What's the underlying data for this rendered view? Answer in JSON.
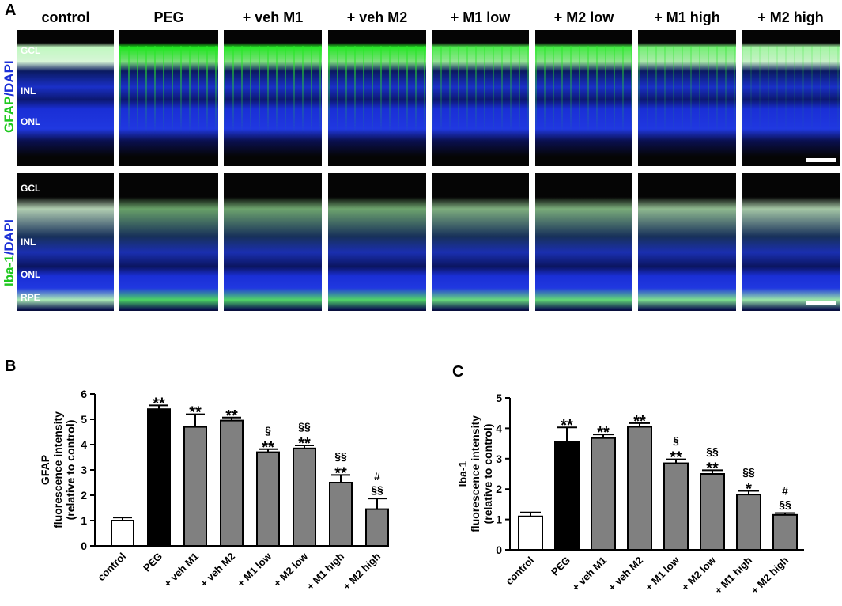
{
  "panels": {
    "A": "A",
    "B": "B",
    "C": "C"
  },
  "micrographs": {
    "columns": [
      "control",
      "PEG",
      "+ veh M1",
      "+ veh M2",
      "+ M1 low",
      "+ M2 low",
      "+ M1 high",
      "+ M2 high"
    ],
    "gfap_row": {
      "stain_label_green": "GFAP",
      "stain_label_blue": "/DAPI",
      "layers": [
        "GCL",
        "INL",
        "ONL"
      ]
    },
    "iba_row": {
      "stain_label_green": "Iba-1",
      "stain_label_blue": "/DAPI",
      "layers": [
        "GCL",
        "INL",
        "ONL",
        "RPE"
      ]
    },
    "colors": {
      "green": "#1ee61e",
      "blue": "#1a2fd6",
      "background": "#050505"
    }
  },
  "chart_data": [
    {
      "type": "bar",
      "panel": "B",
      "categories": [
        "control",
        "PEG",
        "+ veh M1",
        "+ veh M2",
        "+ M1 low",
        "+ M2 low",
        "+ M1 high",
        "+ M2 high"
      ],
      "values": [
        1.0,
        5.4,
        4.7,
        4.95,
        3.7,
        3.85,
        2.5,
        1.45
      ],
      "errors": [
        0.12,
        0.15,
        0.5,
        0.12,
        0.12,
        0.12,
        0.3,
        0.42
      ],
      "bar_colors": [
        "#ffffff",
        "#000000",
        "#808080",
        "#808080",
        "#808080",
        "#808080",
        "#808080",
        "#808080"
      ],
      "annotations": [
        [],
        [
          "**"
        ],
        [
          "**"
        ],
        [
          "**"
        ],
        [
          "§",
          "**"
        ],
        [
          "§§",
          "**"
        ],
        [
          "§§",
          "**"
        ],
        [
          "#",
          "§§"
        ]
      ],
      "ylabel_lines": [
        "GFAP",
        "fluorescence intensity",
        "(relative to control)"
      ],
      "ylim": [
        0,
        6
      ],
      "yticks": [
        "0",
        "1",
        "2",
        "3",
        "4",
        "5",
        "6"
      ]
    },
    {
      "type": "bar",
      "panel": "C",
      "categories": [
        "control",
        "PEG",
        "+ veh M1",
        "+ veh M2",
        "+ M1 low",
        "+ M2 low",
        "+ M1 high",
        "+ M2 high"
      ],
      "values": [
        1.1,
        3.55,
        3.68,
        4.05,
        2.85,
        2.5,
        1.82,
        1.15
      ],
      "errors": [
        0.13,
        0.48,
        0.12,
        0.12,
        0.13,
        0.12,
        0.12,
        0.06
      ],
      "bar_colors": [
        "#ffffff",
        "#000000",
        "#808080",
        "#808080",
        "#808080",
        "#808080",
        "#808080",
        "#808080"
      ],
      "annotations": [
        [],
        [
          "**"
        ],
        [
          "**"
        ],
        [
          "**"
        ],
        [
          "§",
          "**"
        ],
        [
          "§§",
          "**"
        ],
        [
          "§§",
          "*"
        ],
        [
          "#",
          "§§"
        ]
      ],
      "ylabel_lines": [
        "Iba-1",
        "fluorescence intensity",
        "(relative to control)"
      ],
      "ylim": [
        0,
        5
      ],
      "yticks": [
        "0",
        "1",
        "2",
        "3",
        "4",
        "5"
      ]
    }
  ]
}
